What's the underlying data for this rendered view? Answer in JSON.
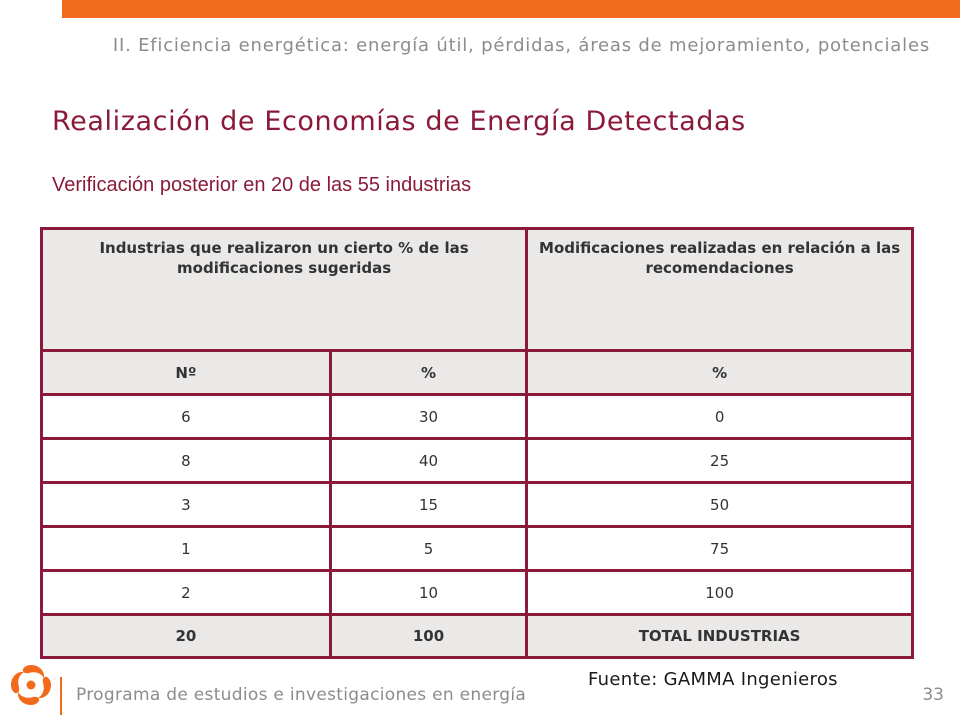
{
  "header": {
    "section_title": "II. Eficiencia energética: energía útil, pérdidas, áreas de mejoramiento, potenciales",
    "accent_color": "#f26a1b"
  },
  "slide": {
    "title": "Realización de Economías de Energía Detectadas",
    "subtitle": "Verificación posterior en 20 de las 55 industrias",
    "title_color": "#8b1a3a"
  },
  "table": {
    "group_headers": [
      "Industrias que realizaron un cierto % de las modificaciones sugeridas",
      "Modificaciones realizadas en relación a las recomendaciones"
    ],
    "column_headers": [
      "Nº",
      "%",
      "%"
    ],
    "rows": [
      [
        "6",
        "30",
        "0"
      ],
      [
        "8",
        "40",
        "25"
      ],
      [
        "3",
        "15",
        "50"
      ],
      [
        "1",
        "5",
        "75"
      ],
      [
        "2",
        "10",
        "100"
      ]
    ],
    "total_row": [
      "20",
      "100",
      "TOTAL INDUSTRIAS"
    ]
  },
  "source": "Fuente: GAMMA Ingenieros",
  "footer": {
    "program": "Programa de estudios e investigaciones en energía",
    "page_number": "33",
    "logo_icon": "orange-swirl-logo-icon"
  }
}
